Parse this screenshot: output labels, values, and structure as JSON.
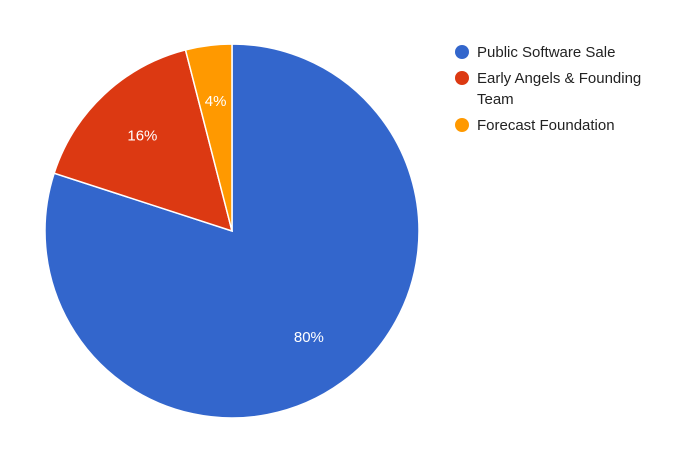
{
  "chart_data": {
    "type": "pie",
    "title": "",
    "start_angle_deg": 0,
    "direction": "clockwise",
    "legend_position": "right",
    "slices": [
      {
        "label": "Public Software Sale",
        "value": 80,
        "display": "80%",
        "color": "#3366cc"
      },
      {
        "label": "Early Angels & Founding Team",
        "value": 16,
        "display": "16%",
        "color": "#dc3912"
      },
      {
        "label": "Forecast Foundation",
        "value": 4,
        "display": "4%",
        "color": "#ff9900"
      }
    ]
  }
}
